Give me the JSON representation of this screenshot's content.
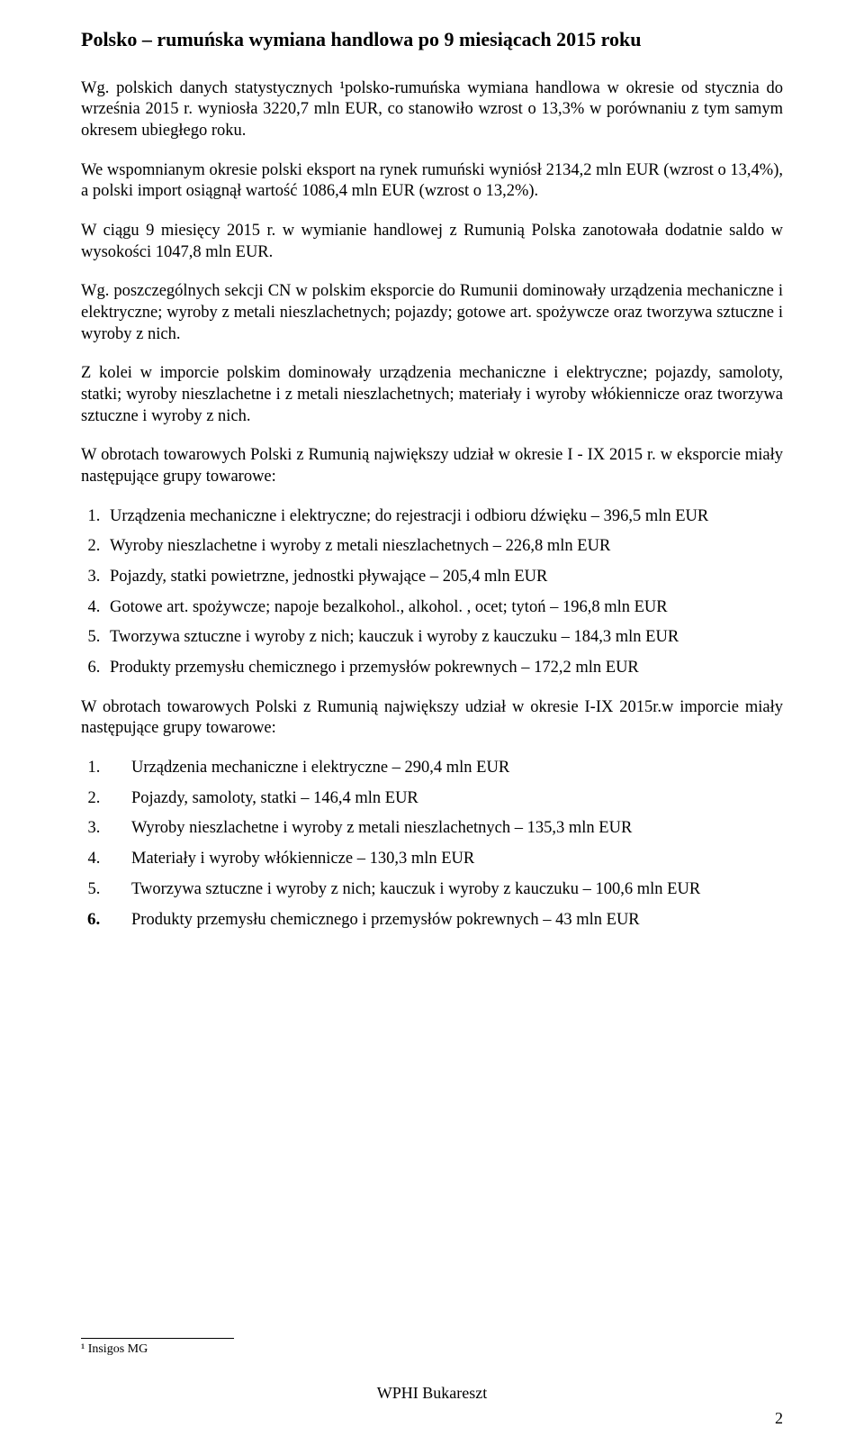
{
  "title": "Polsko – rumuńska wymiana handlowa po 9 miesiącach 2015 roku",
  "para1": "Wg. polskich danych statystycznych ¹polsko-rumuńska wymiana handlowa w okresie od stycznia do września 2015 r. wyniosła 3220,7 mln EUR, co stanowiło wzrost o 13,3% w porównaniu z tym samym okresem ubiegłego roku.",
  "para2": "We wspomnianym okresie polski eksport na rynek rumuński wyniósł 2134,2 mln EUR (wzrost o 13,4%), a polski import osiągnął wartość 1086,4 mln EUR (wzrost o 13,2%).",
  "para3": "W ciągu 9 miesięcy 2015 r. w wymianie handlowej z Rumunią Polska zanotowała dodatnie saldo w wysokości 1047,8 mln EUR.",
  "para4": "Wg. poszczególnych sekcji CN w polskim eksporcie do Rumunii dominowały urządzenia mechaniczne i elektryczne; wyroby z metali nieszlachetnych; pojazdy; gotowe art. spożywcze oraz tworzywa sztuczne i wyroby z nich.",
  "para5": "Z kolei w imporcie polskim dominowały urządzenia mechaniczne i elektryczne; pojazdy, samoloty, statki; wyroby nieszlachetne i z metali nieszlachetnych; materiały i wyroby włókiennicze oraz tworzywa sztuczne i wyroby z nich.",
  "para6": "W obrotach towarowych Polski z Rumunią największy udział w okresie I - IX 2015 r. w eksporcie miały następujące grupy towarowe:",
  "export_list": [
    "Urządzenia mechaniczne i elektryczne; do rejestracji i odbioru dźwięku – 396,5 mln EUR",
    "Wyroby nieszlachetne i wyroby z metali nieszlachetnych – 226,8 mln EUR",
    "Pojazdy, statki powietrzne, jednostki pływające  – 205,4 mln EUR",
    "Gotowe art. spożywcze; napoje bezalkohol., alkohol. , ocet; tytoń – 196,8 mln EUR",
    "Tworzywa sztuczne i wyroby z nich; kauczuk i wyroby z kauczuku – 184,3 mln EUR",
    "Produkty przemysłu chemicznego i przemysłów pokrewnych – 172,2 mln EUR"
  ],
  "para7": "W obrotach towarowych Polski z Rumunią największy udział w okresie I-IX 2015r.w imporcie miały następujące grupy towarowe:",
  "import_list": [
    "Urządzenia mechaniczne i elektryczne – 290,4 mln EUR",
    "Pojazdy, samoloty, statki – 146,4 mln EUR",
    "Wyroby nieszlachetne i wyroby z metali nieszlachetnych – 135,3 mln EUR",
    "Materiały i wyroby włókiennicze – 130,3 mln EUR",
    "Tworzywa sztuczne i wyroby z nich; kauczuk i wyroby z kauczuku – 100,6 mln EUR",
    "Produkty przemysłu chemicznego i przemysłów pokrewnych – 43 mln EUR"
  ],
  "footnote": "¹ Insigos MG",
  "footer": "WPHI Bukareszt",
  "page_number": "2"
}
